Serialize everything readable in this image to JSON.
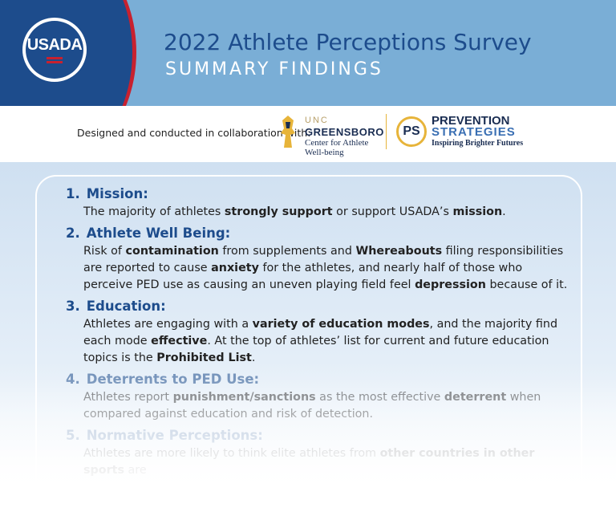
{
  "header": {
    "logo_text": "USADA",
    "title": "2022 Athlete Perceptions Survey",
    "subtitle": "SUMMARY FINDINGS"
  },
  "collab": {
    "text": "Designed and conducted in collaboration with:",
    "unc": {
      "top": "UNC",
      "name": "GREENSBORO",
      "line1": "Center for Athlete",
      "line2": "Well-being"
    },
    "ps": {
      "badge": "PS",
      "name1": "PREVENTION",
      "name2": "STRATEGIES",
      "tagline": "Inspiring Brighter Futures"
    }
  },
  "findings": [
    {
      "num": "1.",
      "title": "Mission:",
      "body": [
        {
          "t": "The majority of athletes "
        },
        {
          "t": "strongly support",
          "b": true
        },
        {
          "t": " or support USADA’s "
        },
        {
          "t": "mission",
          "b": true
        },
        {
          "t": "."
        }
      ]
    },
    {
      "num": "2.",
      "title": "Athlete Well Being:",
      "body": [
        {
          "t": "Risk of "
        },
        {
          "t": "contamination",
          "b": true
        },
        {
          "t": " from supplements and "
        },
        {
          "t": "Whereabouts",
          "b": true
        },
        {
          "t": " filing responsibilities are reported to cause "
        },
        {
          "t": "anxiety",
          "b": true
        },
        {
          "t": " for the athletes, and nearly half of those who perceive PED use as causing an uneven playing field feel "
        },
        {
          "t": "depression",
          "b": true
        },
        {
          "t": " because of it."
        }
      ]
    },
    {
      "num": "3.",
      "title": "Education:",
      "body": [
        {
          "t": "Athletes are engaging with a "
        },
        {
          "t": "variety of education modes",
          "b": true
        },
        {
          "t": ", and the majority find each mode "
        },
        {
          "t": "effective",
          "b": true
        },
        {
          "t": ". At the top of athletes’ list for current and future education topics is the "
        },
        {
          "t": "Prohibited List",
          "b": true
        },
        {
          "t": "."
        }
      ]
    },
    {
      "num": "4.",
      "title": "Deterrents to PED Use:",
      "body": [
        {
          "t": "Athletes report "
        },
        {
          "t": "punishment/sanctions",
          "b": true
        },
        {
          "t": " as the most effective "
        },
        {
          "t": "deterrent",
          "b": true
        },
        {
          "t": " when compared against education and risk of detection."
        }
      ]
    },
    {
      "num": "5.",
      "title": "Normative Perceptions:",
      "body": [
        {
          "t": "Athletes are more likely to think elite athletes from "
        },
        {
          "t": "other countries in other sports",
          "b": true
        },
        {
          "t": " are"
        }
      ]
    }
  ]
}
